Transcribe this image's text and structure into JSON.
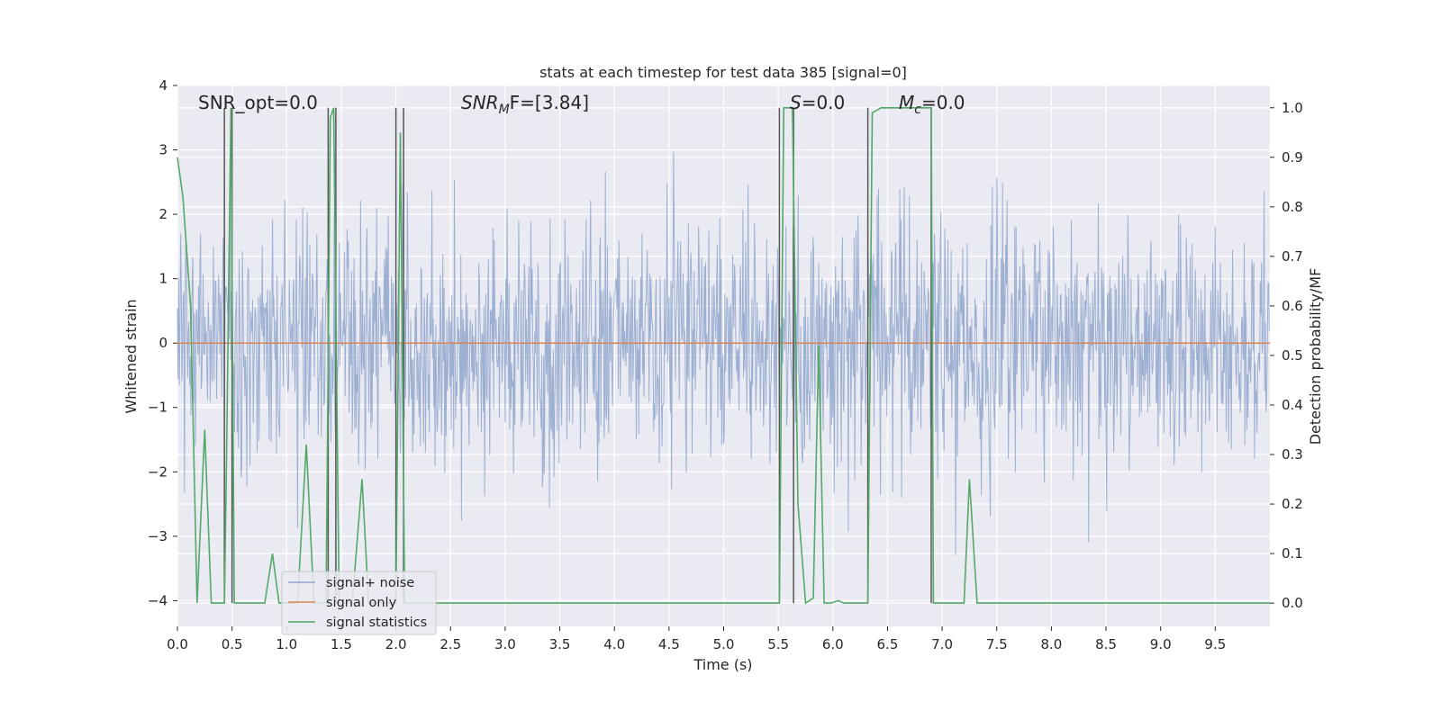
{
  "chart_data": {
    "type": "line",
    "title": "stats at each timestep for test data 385 [signal=0]",
    "xlabel": "Time (s)",
    "ylabel": "Whitened strain",
    "y2label": "Detection probability/MF",
    "xlim": [
      0.0,
      10.0
    ],
    "ylim": [
      -4.4,
      4.0
    ],
    "y2lim": [
      -0.047,
      1.045
    ],
    "x_ticks": [
      "0.0",
      "0.5",
      "1.0",
      "1.5",
      "2.0",
      "2.5",
      "3.0",
      "3.5",
      "4.0",
      "4.5",
      "5.0",
      "5.5",
      "6.0",
      "6.5",
      "7.0",
      "7.5",
      "8.0",
      "8.5",
      "9.0",
      "9.5"
    ],
    "y_ticks": [
      "4",
      "3",
      "2",
      "1",
      "0",
      "−1",
      "−2",
      "−3",
      "−4"
    ],
    "y_tick_values": [
      4,
      3,
      2,
      1,
      0,
      -1,
      -2,
      -3,
      -4
    ],
    "y2_ticks": [
      "1.0",
      "0.9",
      "0.8",
      "0.7",
      "0.6",
      "0.5",
      "0.4",
      "0.3",
      "0.2",
      "0.1",
      "0.0"
    ],
    "y2_tick_values": [
      1.0,
      0.9,
      0.8,
      0.7,
      0.6,
      0.5,
      0.4,
      0.3,
      0.2,
      0.1,
      0.0
    ],
    "grid": true,
    "legend_position": "lower-left",
    "annotations": {
      "snr_opt": "SNR_opt=0.0",
      "snr_mf_base": "SNR",
      "snr_mf_sub": "M",
      "snr_mf_rest": "F=[3.84]",
      "s_label": "S",
      "s_rest": "=0.0",
      "mc_base": "M",
      "mc_sub": "c",
      "mc_rest": "=0.0"
    },
    "series": [
      {
        "name": "signal+ noise",
        "color": "#8fa6cd",
        "description_range": [
          -4.0,
          3.6
        ],
        "noise_std": 1.0
      },
      {
        "name": "signal only",
        "color": "#dd8452",
        "x": [
          0.0,
          10.0
        ],
        "y": [
          0.0,
          0.0
        ]
      },
      {
        "name": "signal statistics",
        "color": "#55a868",
        "axis": "right",
        "x": [
          0.0,
          0.05,
          0.12,
          0.18,
          0.25,
          0.31,
          0.43,
          0.45,
          0.49,
          0.52,
          0.55,
          0.6,
          0.8,
          0.87,
          0.93,
          1.1,
          1.18,
          1.25,
          1.36,
          1.4,
          1.43,
          1.48,
          1.6,
          1.69,
          1.75,
          2.0,
          2.04,
          2.08,
          2.12,
          2.5,
          3.0,
          3.5,
          4.0,
          4.5,
          5.0,
          5.51,
          5.55,
          5.57,
          5.63,
          5.68,
          5.75,
          5.82,
          5.87,
          5.92,
          5.98,
          6.05,
          6.1,
          6.32,
          6.36,
          6.44,
          6.6,
          6.9,
          6.92,
          7.0,
          7.2,
          7.25,
          7.32,
          7.5,
          8.0,
          9.0,
          10.0
        ],
        "y": [
          0.9,
          0.82,
          0.6,
          0.0,
          0.35,
          0.0,
          0.0,
          0.3,
          1.0,
          0.0,
          0.0,
          0.0,
          0.0,
          0.1,
          0.0,
          0.0,
          0.32,
          0.0,
          0.0,
          0.98,
          1.0,
          0.0,
          0.0,
          0.25,
          0.0,
          0.0,
          0.95,
          0.0,
          0.0,
          0.0,
          0.0,
          0.0,
          0.0,
          0.0,
          0.0,
          0.0,
          1.0,
          1.0,
          1.0,
          0.2,
          0.0,
          0.01,
          0.52,
          0.0,
          0.0,
          0.005,
          0.0,
          0.0,
          0.99,
          1.0,
          1.0,
          1.0,
          0.0,
          0.0,
          0.0,
          0.25,
          0.0,
          0.0,
          0.0,
          0.0,
          0.0
        ]
      }
    ],
    "vlines": [
      0.43,
      0.5,
      1.38,
      1.45,
      2.0,
      2.07,
      5.51,
      5.64,
      6.32,
      6.9
    ]
  }
}
